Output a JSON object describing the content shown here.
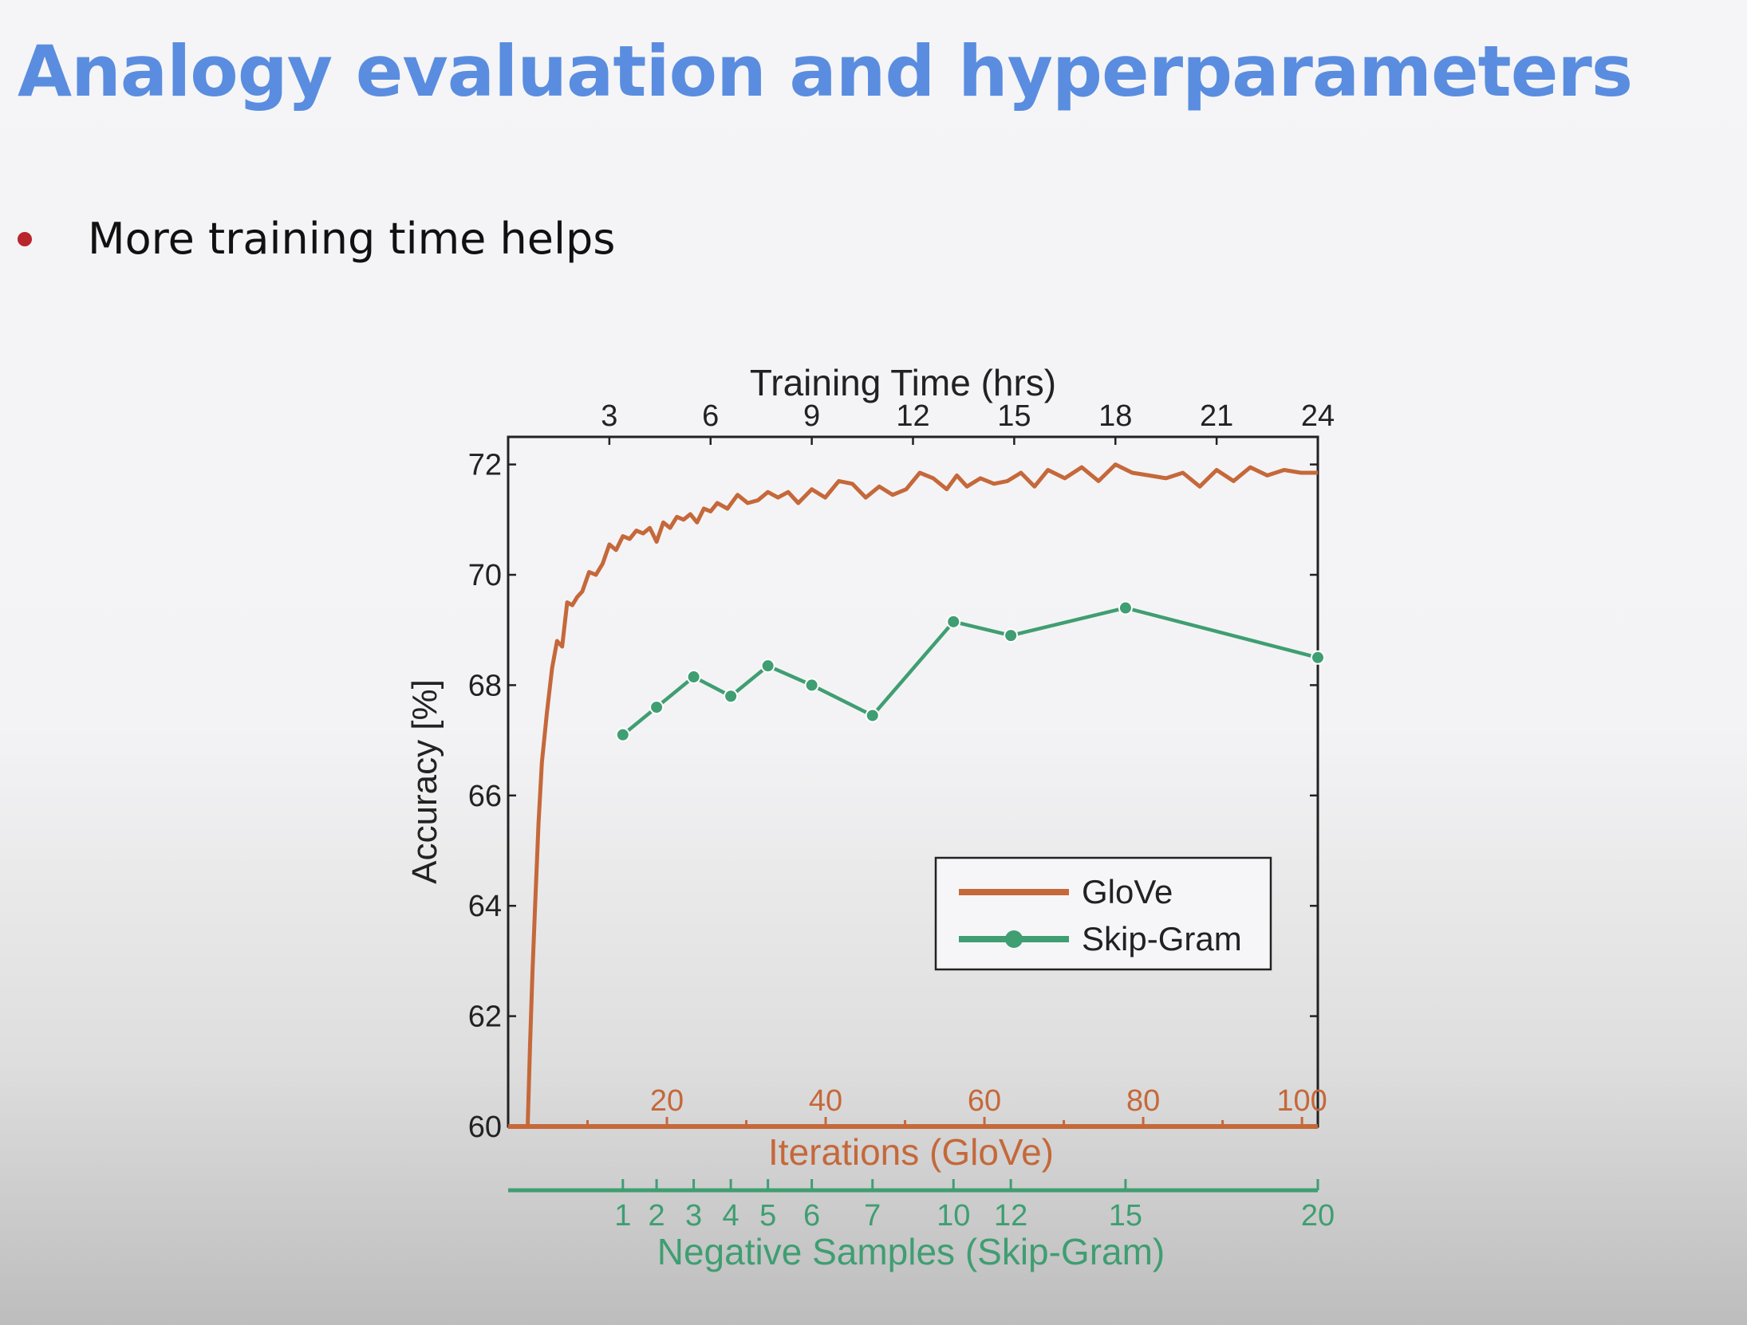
{
  "slide": {
    "title": "Analogy evaluation and hyperparameters",
    "bullet": "More training time helps"
  },
  "colors": {
    "title": "#5a8ddf",
    "bullet": "#b8252b",
    "glove": "#c5683a",
    "skipgram": "#3f9e72"
  },
  "chart_data": {
    "type": "line",
    "ylabel": "Accuracy [%]",
    "ylim": [
      60,
      72.5
    ],
    "yticks": [
      60,
      62,
      64,
      66,
      68,
      70,
      72
    ],
    "top_axis": {
      "label": "Training Time (hrs)",
      "range": [
        0,
        24
      ],
      "ticks": [
        3,
        6,
        9,
        12,
        15,
        18,
        21,
        24
      ]
    },
    "glove_axis": {
      "label": "Iterations (GloVe)",
      "range": [
        0,
        102
      ],
      "ticks": [
        20,
        40,
        60,
        80,
        100
      ]
    },
    "skipgram_axis": {
      "label": "Negative Samples (Skip-Gram)",
      "ticks": [
        {
          "label": "1",
          "hours": 3.4
        },
        {
          "label": "2",
          "hours": 4.4
        },
        {
          "label": "3",
          "hours": 5.5
        },
        {
          "label": "4",
          "hours": 6.6
        },
        {
          "label": "5",
          "hours": 7.7
        },
        {
          "label": "6",
          "hours": 9.0
        },
        {
          "label": "7",
          "hours": 10.8
        },
        {
          "label": "10",
          "hours": 13.2
        },
        {
          "label": "12",
          "hours": 14.9
        },
        {
          "label": "15",
          "hours": 18.3
        },
        {
          "label": "20",
          "hours": 24.0
        }
      ]
    },
    "legend": {
      "position": "lower-right",
      "entries": [
        "GloVe",
        "Skip-Gram"
      ]
    },
    "series": [
      {
        "name": "GloVe",
        "x_hours": [
          0.58,
          0.65,
          0.72,
          0.8,
          0.9,
          1.0,
          1.15,
          1.3,
          1.45,
          1.6,
          1.75,
          1.9,
          2.05,
          2.2,
          2.4,
          2.6,
          2.8,
          3.0,
          3.2,
          3.4,
          3.6,
          3.8,
          4.0,
          4.2,
          4.4,
          4.6,
          4.8,
          5.0,
          5.2,
          5.4,
          5.6,
          5.8,
          6.0,
          6.2,
          6.5,
          6.8,
          7.1,
          7.4,
          7.7,
          8.0,
          8.3,
          8.6,
          9.0,
          9.4,
          9.8,
          10.2,
          10.6,
          11.0,
          11.4,
          11.8,
          12.2,
          12.6,
          13.0,
          13.3,
          13.6,
          14.0,
          14.4,
          14.8,
          15.2,
          15.6,
          16.0,
          16.5,
          17.0,
          17.5,
          18.0,
          18.5,
          19.0,
          19.5,
          20.0,
          20.5,
          21.0,
          21.5,
          22.0,
          22.5,
          23.0,
          23.5,
          24.0
        ],
        "y": [
          60.0,
          61.5,
          62.8,
          64.0,
          65.5,
          66.6,
          67.5,
          68.3,
          68.8,
          68.7,
          69.5,
          69.45,
          69.6,
          69.7,
          70.05,
          70.0,
          70.2,
          70.55,
          70.45,
          70.7,
          70.65,
          70.8,
          70.75,
          70.85,
          70.6,
          70.95,
          70.85,
          71.05,
          71.0,
          71.1,
          70.95,
          71.2,
          71.15,
          71.3,
          71.2,
          71.45,
          71.3,
          71.35,
          71.5,
          71.4,
          71.5,
          71.3,
          71.55,
          71.4,
          71.7,
          71.65,
          71.4,
          71.6,
          71.45,
          71.55,
          71.85,
          71.75,
          71.55,
          71.8,
          71.6,
          71.75,
          71.65,
          71.7,
          71.85,
          71.6,
          71.9,
          71.75,
          71.95,
          71.7,
          72.0,
          71.85,
          71.8,
          71.75,
          71.85,
          71.6,
          71.9,
          71.7,
          71.95,
          71.8,
          71.9,
          71.85,
          71.85
        ]
      },
      {
        "name": "Skip-Gram",
        "x_hours": [
          3.4,
          4.4,
          5.5,
          6.6,
          7.7,
          9.0,
          10.8,
          13.2,
          14.9,
          18.3,
          24.0
        ],
        "negative_samples": [
          1,
          2,
          3,
          4,
          5,
          6,
          7,
          10,
          12,
          15,
          20
        ],
        "y": [
          67.1,
          67.6,
          68.15,
          67.8,
          68.35,
          68.0,
          67.45,
          69.15,
          68.9,
          69.4,
          68.5
        ]
      }
    ]
  }
}
